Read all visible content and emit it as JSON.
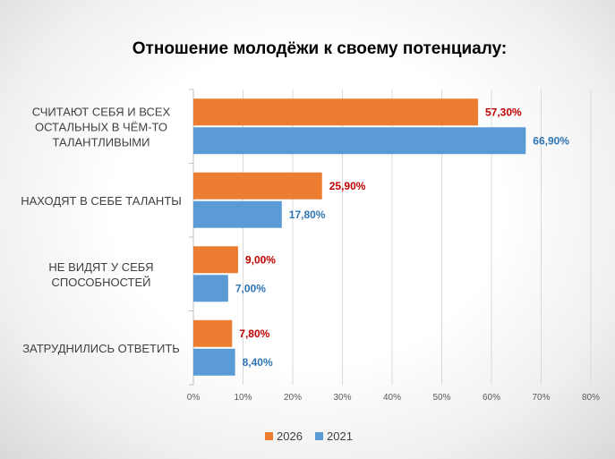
{
  "chart_data": {
    "type": "bar",
    "orientation": "horizontal",
    "title": "Отношение молодёжи к своему потенциалу:",
    "categories": [
      [
        "СЧИТАЮТ СЕБЯ И ВСЕХ",
        "ОСТАЛЬНЫХ В ЧЁМ-ТО",
        "ТАЛАНТЛИВЫМИ"
      ],
      [
        "НАХОДЯТ В СЕБЕ ТАЛАНТЫ"
      ],
      [
        "НЕ ВИДЯТ У СЕБЯ",
        "СПОСОБНОСТЕЙ"
      ],
      [
        "ЗАТРУДНИЛИСЬ ОТВЕТИТЬ"
      ]
    ],
    "series": [
      {
        "name": "2026",
        "color": "#ED7D31",
        "label_color": "#C00000",
        "values": [
          57.3,
          25.9,
          9.0,
          7.8
        ],
        "labels": [
          "57,30%",
          "25,90%",
          "9,00%",
          "7,80%"
        ]
      },
      {
        "name": "2021",
        "color": "#5B9BD5",
        "label_color": "#2E75B6",
        "values": [
          66.9,
          17.8,
          7.0,
          8.4
        ],
        "labels": [
          "66,90%",
          "17,80%",
          "7,00%",
          "8,40%"
        ]
      }
    ],
    "xlim": [
      0,
      80
    ],
    "xticks": [
      0,
      10,
      20,
      30,
      40,
      50,
      60,
      70,
      80
    ],
    "xtick_labels": [
      "0%",
      "10%",
      "20%",
      "30%",
      "40%",
      "50%",
      "60%",
      "70%",
      "80%"
    ],
    "grid": true,
    "legend_position": "bottom"
  }
}
